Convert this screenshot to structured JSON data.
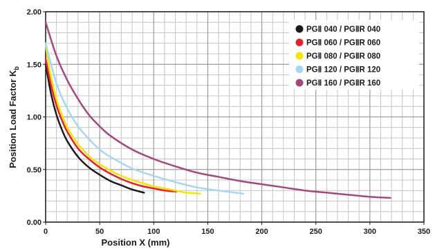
{
  "chart_data": {
    "type": "line",
    "xlabel": "Position X (mm)",
    "ylabel": "Position Load Factor K",
    "ylabel_subscript": "b",
    "xlim": [
      0,
      350
    ],
    "ylim": [
      0,
      2.0
    ],
    "x_ticks": [
      0,
      50,
      100,
      150,
      200,
      250,
      300,
      350
    ],
    "y_ticks": [
      0.0,
      0.5,
      1.0,
      1.5,
      2.0
    ],
    "x_tick_labels": [
      "0",
      "50",
      "100",
      "150",
      "200",
      "250",
      "300",
      "350"
    ],
    "y_tick_labels": [
      "0.00",
      "0.50",
      "1.00",
      "1.50",
      "2.00"
    ],
    "grid": true,
    "legend_position": "top-right",
    "series": [
      {
        "name": "PGⅡ 040 / PGⅡR 040",
        "color": "#1a1a1a",
        "x": [
          0,
          5,
          10,
          15,
          20,
          30,
          40,
          50,
          60,
          70,
          80,
          91
        ],
        "y": [
          1.5,
          1.22,
          1.02,
          0.88,
          0.77,
          0.62,
          0.52,
          0.45,
          0.39,
          0.35,
          0.31,
          0.28
        ]
      },
      {
        "name": "PGⅡ 060 / PGⅡR 060",
        "color": "#e8202a",
        "x": [
          0,
          5,
          10,
          15,
          20,
          30,
          40,
          50,
          60,
          70,
          80,
          90,
          100,
          110,
          121
        ],
        "y": [
          1.55,
          1.3,
          1.11,
          0.97,
          0.86,
          0.7,
          0.6,
          0.52,
          0.46,
          0.41,
          0.37,
          0.34,
          0.32,
          0.3,
          0.29
        ]
      },
      {
        "name": "PGⅡ 080 / PGⅡR 080",
        "color": "#f5e500",
        "x": [
          0,
          5,
          10,
          15,
          20,
          30,
          40,
          50,
          60,
          70,
          80,
          90,
          100,
          110,
          120,
          130,
          143
        ],
        "y": [
          1.68,
          1.38,
          1.17,
          1.02,
          0.9,
          0.74,
          0.63,
          0.55,
          0.49,
          0.44,
          0.4,
          0.37,
          0.34,
          0.32,
          0.3,
          0.28,
          0.27
        ]
      },
      {
        "name": "PGⅡ 120 / PGⅡR 120",
        "color": "#a5d8f0",
        "x": [
          0,
          10,
          20,
          30,
          40,
          50,
          60,
          80,
          100,
          120,
          140,
          160,
          183
        ],
        "y": [
          1.7,
          1.32,
          1.08,
          0.91,
          0.79,
          0.69,
          0.62,
          0.51,
          0.44,
          0.38,
          0.33,
          0.3,
          0.27
        ]
      },
      {
        "name": "PGⅡ 160 / PGⅡR 160",
        "color": "#a3477d",
        "x": [
          0,
          10,
          20,
          30,
          40,
          50,
          60,
          80,
          100,
          120,
          140,
          160,
          180,
          200,
          220,
          240,
          260,
          280,
          300,
          319
        ],
        "y": [
          1.9,
          1.58,
          1.35,
          1.17,
          1.02,
          0.91,
          0.82,
          0.69,
          0.6,
          0.53,
          0.47,
          0.43,
          0.39,
          0.36,
          0.33,
          0.3,
          0.28,
          0.26,
          0.24,
          0.23
        ]
      }
    ]
  }
}
